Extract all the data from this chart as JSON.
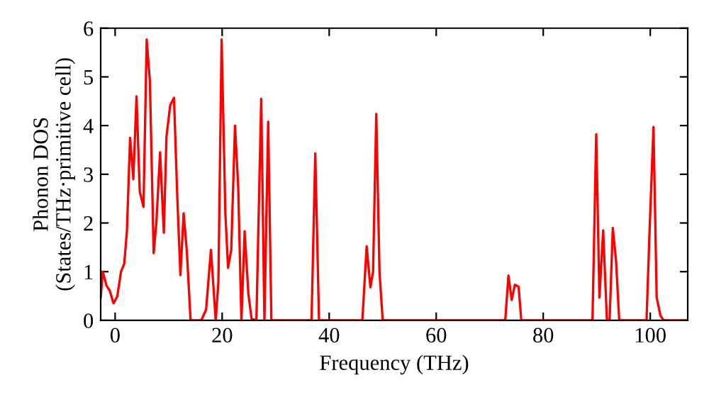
{
  "chart_data": {
    "type": "line",
    "xlabel": "Frequency (THz)",
    "ylabel": "Phonon DOS\n(States/THz·primitive cell)",
    "xlim": [
      -2.7,
      107
    ],
    "ylim": [
      0,
      6
    ],
    "xticks": [
      0,
      20,
      40,
      60,
      80,
      100
    ],
    "yticks": [
      0,
      1,
      2,
      3,
      4,
      5,
      6
    ],
    "grid": false,
    "legend": false,
    "marker": "none",
    "line_style": "solid",
    "series": [
      {
        "color": "#ff0000",
        "x": [
          -2.7,
          -2.3,
          -1.6,
          -1.0,
          -0.3,
          0.4,
          1.1,
          1.7,
          2.2,
          2.8,
          3.4,
          4.0,
          4.6,
          5.3,
          5.9,
          6.5,
          7.2,
          7.7,
          8.4,
          9.1,
          9.6,
          10.3,
          11.0,
          11.6,
          12.2,
          12.8,
          13.4,
          14.1,
          16.1,
          17.0,
          17.9,
          18.8,
          19.3,
          19.9,
          20.6,
          21.1,
          21.7,
          22.4,
          23.0,
          23.6,
          24.2,
          24.9,
          25.5,
          26.4,
          27.3,
          27.9,
          28.6,
          29.2,
          36.7,
          37.4,
          38.1,
          46.2,
          47.0,
          47.7,
          48.2,
          48.8,
          49.4,
          50.0,
          72.9,
          73.5,
          74.1,
          74.7,
          75.4,
          75.9,
          89.2,
          89.9,
          90.5,
          91.2,
          91.9,
          92.4,
          93.0,
          93.6,
          94.2,
          99.3,
          99.9,
          100.6,
          101.2,
          101.9,
          102.5,
          107
        ],
        "values": [
          0.47,
          1.0,
          0.71,
          0.61,
          0.35,
          0.49,
          1.0,
          1.16,
          1.83,
          3.75,
          2.9,
          4.6,
          2.65,
          2.33,
          5.77,
          4.9,
          1.38,
          2.0,
          3.45,
          1.8,
          3.78,
          4.42,
          4.57,
          2.58,
          0.93,
          2.2,
          1.42,
          0,
          0,
          0.22,
          1.45,
          0,
          0.8,
          5.77,
          2.2,
          1.08,
          1.45,
          4.0,
          2.75,
          0,
          1.83,
          0.55,
          0.03,
          0,
          4.55,
          0,
          4.08,
          0,
          0,
          3.43,
          0,
          0,
          1.52,
          0.68,
          1.0,
          4.24,
          1.0,
          0,
          0,
          0.92,
          0.42,
          0.73,
          0.69,
          0,
          0,
          3.82,
          0.47,
          1.85,
          0,
          0,
          1.9,
          1.23,
          0,
          0,
          1.93,
          3.97,
          0.47,
          0.1,
          0,
          0
        ]
      }
    ]
  }
}
